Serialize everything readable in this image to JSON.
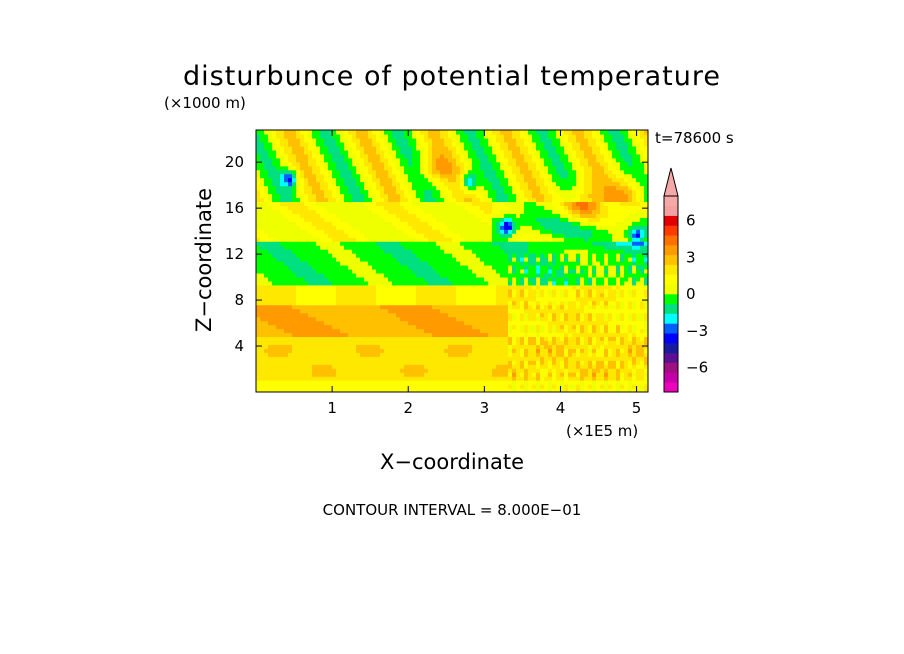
{
  "chart_data": {
    "type": "heatmap",
    "title": "disturbunce of potential temperature",
    "time_label": "t=78600 s",
    "xlabel": "X−coordinate",
    "ylabel": "Z−coordinate",
    "x_unit": "(×1E5 m)",
    "y_unit": "(×1000 m)",
    "xlim": [
      0,
      5.15
    ],
    "ylim": [
      0,
      22.8
    ],
    "x_ticks": [
      1,
      2,
      3,
      4,
      5
    ],
    "y_ticks": [
      4,
      8,
      12,
      16,
      20
    ],
    "x_tick_labels": [
      "1",
      "2",
      "3",
      "4",
      "5"
    ],
    "y_tick_labels": [
      "4",
      "8",
      "12",
      "16",
      "20"
    ],
    "contour_interval_label": "CONTOUR INTERVAL = 8.000E−01",
    "colorbar": {
      "levels": [
        -8,
        -7.2,
        -6.4,
        -5.6,
        -4.8,
        -4,
        -3.2,
        -2.4,
        -1.6,
        -0.8,
        0,
        0.8,
        1.6,
        2.4,
        3.2,
        4,
        4.8,
        5.6,
        6.4,
        7.2,
        8
      ],
      "tick_values": [
        -6,
        -3,
        0,
        3,
        6
      ],
      "tick_labels": [
        "−6",
        "−3",
        "0",
        "3",
        "6"
      ],
      "colors": [
        "#ee00c0",
        "#c600a8",
        "#a01080",
        "#5a1090",
        "#1a1aa0",
        "#0000ff",
        "#0060ff",
        "#00ffff",
        "#00e080",
        "#00ff00",
        "#f0ff00",
        "#ffff00",
        "#ffe800",
        "#ffc000",
        "#ff9a00",
        "#ff7000",
        "#ff3a00",
        "#e00000",
        "#f2a0a0",
        "#f6a8a8"
      ],
      "extend_arrow": "top"
    }
  }
}
